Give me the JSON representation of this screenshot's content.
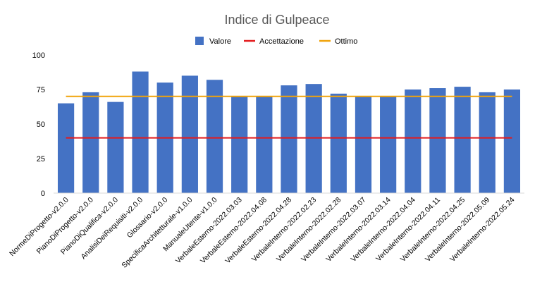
{
  "chart_data": {
    "type": "bar",
    "title": "Indice di Gulpeace",
    "xlabel": "",
    "ylabel": "",
    "ylim": [
      0,
      100
    ],
    "yticks": [
      0,
      25,
      50,
      75,
      100
    ],
    "grid": false,
    "legend_position": "top",
    "categories": [
      "NormeDiProgetto-v2.0.0",
      "PianoDiProgetto-v2.0.0",
      "PianoDiQualifica-v2.0.0",
      "AnalisiDeiRequisiti-v2.0.0",
      "Glossario-v2.0.0",
      "SpecificaArchitetturale-v1.0.0",
      "ManualeUtente-v1.0.0",
      "VerbaleEsterno-2022.03.03",
      "VerbaleEsterno-2022.04.08",
      "VerbaleEsterno-2022.04.28",
      "VerbaleInterno-2022.02.23",
      "VerbaleInterno-2022.02.28",
      "VerbaleInterno-2022.03.07",
      "VerbaleInterno-2022.03.14",
      "VerbaleInterno-2022.04.04",
      "VerbaleInterno-2022.04.11",
      "VerbaleInterno-2022.04.25",
      "VerbaleInterno-2022.05.09",
      "VerbaleInterno-2022.05.24"
    ],
    "series": [
      {
        "name": "Valore",
        "kind": "bar",
        "color": "#4472C4",
        "values": [
          65,
          73,
          66,
          88,
          80,
          85,
          82,
          70,
          70,
          78,
          79,
          72,
          70,
          70,
          75,
          76,
          77,
          73,
          75
        ]
      },
      {
        "name": "Accettazione",
        "kind": "line",
        "color": "#E31A1C",
        "values": [
          40,
          40,
          40,
          40,
          40,
          40,
          40,
          40,
          40,
          40,
          40,
          40,
          40,
          40,
          40,
          40,
          40,
          40,
          40
        ]
      },
      {
        "name": "Ottimo",
        "kind": "line",
        "color": "#F0A30A",
        "values": [
          70,
          70,
          70,
          70,
          70,
          70,
          70,
          70,
          70,
          70,
          70,
          70,
          70,
          70,
          70,
          70,
          70,
          70,
          70
        ]
      }
    ]
  }
}
